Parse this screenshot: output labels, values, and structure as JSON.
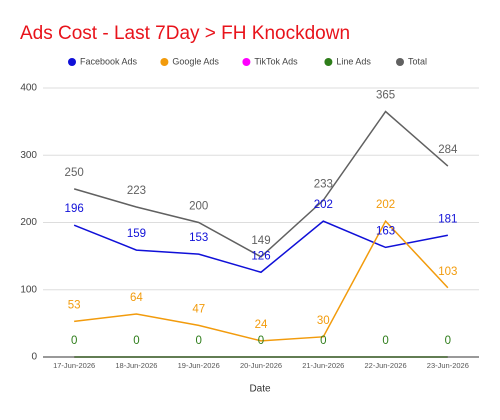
{
  "chart_data": {
    "type": "line",
    "title": "Ads Cost - Last 7Day > FH Knockdown",
    "x_label": "Date",
    "categories": [
      "17-Jun-2026",
      "18-Jun-2026",
      "19-Jun-2026",
      "20-Jun-2026",
      "21-Jun-2026",
      "22-Jun-2026",
      "23-Jun-2026"
    ],
    "series": [
      {
        "name": "Facebook Ads",
        "color": "#1010d8",
        "values": [
          196,
          159,
          153,
          126,
          202,
          163,
          181
        ],
        "labels": true
      },
      {
        "name": "Google Ads",
        "color": "#f29b0c",
        "values": [
          53,
          64,
          47,
          24,
          30,
          202,
          103
        ],
        "labels": true
      },
      {
        "name": "TikTok Ads",
        "color": "#ff00ff",
        "values": [
          0,
          0,
          0,
          0,
          0,
          0,
          0
        ],
        "labels": false
      },
      {
        "name": "Line Ads",
        "color": "#2e7d1a",
        "values": [
          0,
          0,
          0,
          0,
          0,
          0,
          0
        ],
        "labels": true
      },
      {
        "name": "Total",
        "color": "#616161",
        "values": [
          250,
          223,
          200,
          149,
          233,
          365,
          284
        ],
        "labels": true
      }
    ],
    "ylim": [
      0,
      400
    ],
    "yticks": [
      0,
      100,
      200,
      300,
      400
    ],
    "grid": true
  }
}
